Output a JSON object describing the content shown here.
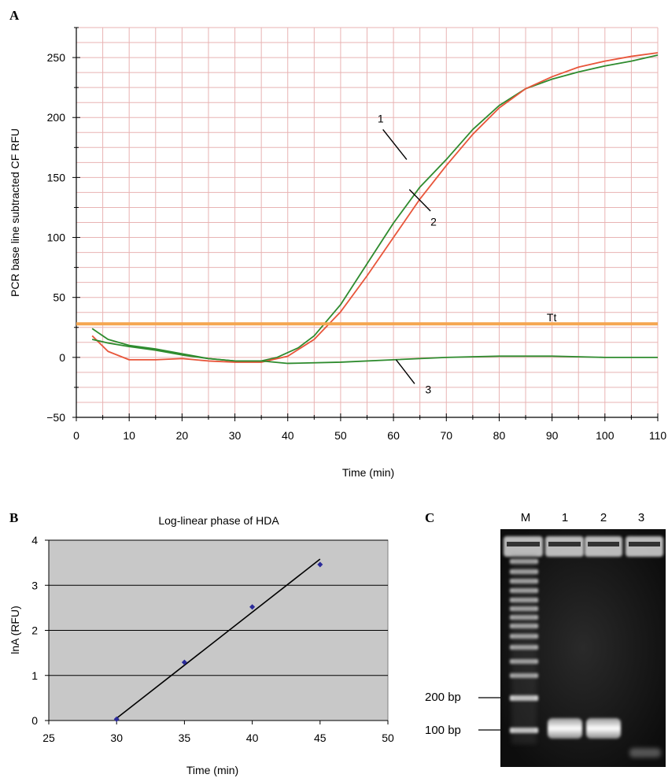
{
  "chart_data": [
    {
      "panel": "A",
      "type": "line",
      "title": "",
      "xlabel": "Time (min)",
      "ylabel": "PCR base line subtracted CF RFU",
      "xlim": [
        0,
        110
      ],
      "ylim": [
        -50,
        275
      ],
      "xticks": [
        0,
        10,
        20,
        30,
        40,
        50,
        60,
        70,
        80,
        90,
        100,
        110
      ],
      "yticks": [
        -50,
        0,
        50,
        100,
        150,
        200,
        250
      ],
      "grid": true,
      "series": [
        {
          "name": "1",
          "color": "#2e8b2e",
          "x": [
            3,
            6,
            10,
            15,
            20,
            25,
            30,
            35,
            38,
            42,
            45,
            50,
            55,
            60,
            65,
            70,
            75,
            80,
            85,
            90,
            95,
            100,
            105,
            110
          ],
          "y": [
            24,
            15,
            10,
            7,
            3,
            -1,
            -3,
            -3,
            0,
            8,
            18,
            44,
            78,
            112,
            142,
            165,
            190,
            210,
            224,
            232,
            238,
            243,
            247,
            252
          ]
        },
        {
          "name": "2",
          "color": "#e8553a",
          "x": [
            3,
            6,
            10,
            15,
            20,
            25,
            30,
            35,
            40,
            45,
            50,
            55,
            60,
            65,
            70,
            75,
            80,
            85,
            90,
            95,
            100,
            105,
            110
          ],
          "y": [
            18,
            5,
            -2,
            -2,
            -1,
            -3,
            -4,
            -4,
            1,
            15,
            38,
            68,
            100,
            132,
            160,
            186,
            208,
            224,
            234,
            242,
            247,
            251,
            254
          ]
        },
        {
          "name": "3",
          "color": "#2e8b2e",
          "x": [
            3,
            6,
            10,
            15,
            20,
            25,
            30,
            35,
            40,
            50,
            60,
            70,
            80,
            90,
            100,
            110
          ],
          "y": [
            15,
            12,
            9,
            6,
            2,
            -1,
            -3,
            -3,
            -5,
            -4,
            -2,
            0,
            1,
            1,
            0,
            0
          ]
        },
        {
          "name": "Tt",
          "color": "#f5a650",
          "x": [
            0,
            110
          ],
          "y": [
            28,
            28
          ]
        }
      ],
      "annotations": [
        {
          "text": "1",
          "x": 57,
          "y": 196
        },
        {
          "text": "2",
          "x": 67,
          "y": 110
        },
        {
          "text": "3",
          "x": 66,
          "y": -30
        },
        {
          "text": "Tt",
          "x": 89,
          "y": 30
        }
      ]
    },
    {
      "panel": "B",
      "type": "scatter",
      "title": "Log-linear phase of HDA",
      "xlabel": "Time (min)",
      "ylabel": "lnA (RFU)",
      "xlim": [
        25,
        50
      ],
      "ylim": [
        0,
        4
      ],
      "xticks": [
        25,
        30,
        35,
        40,
        45,
        50
      ],
      "yticks": [
        0,
        1,
        2,
        3,
        4
      ],
      "grid": true,
      "points": {
        "x": [
          30,
          35,
          40,
          45
        ],
        "y": [
          0.03,
          1.29,
          2.52,
          3.46
        ]
      },
      "trendline": {
        "x": [
          30,
          45
        ],
        "y": [
          0.05,
          3.58
        ]
      }
    }
  ],
  "panels": {
    "a_letter": "A",
    "b_letter": "B",
    "c_letter": "C"
  },
  "gel": {
    "lanes": [
      "M",
      "1",
      "2",
      "3"
    ],
    "markers": [
      "200 bp",
      "100 bp"
    ]
  }
}
